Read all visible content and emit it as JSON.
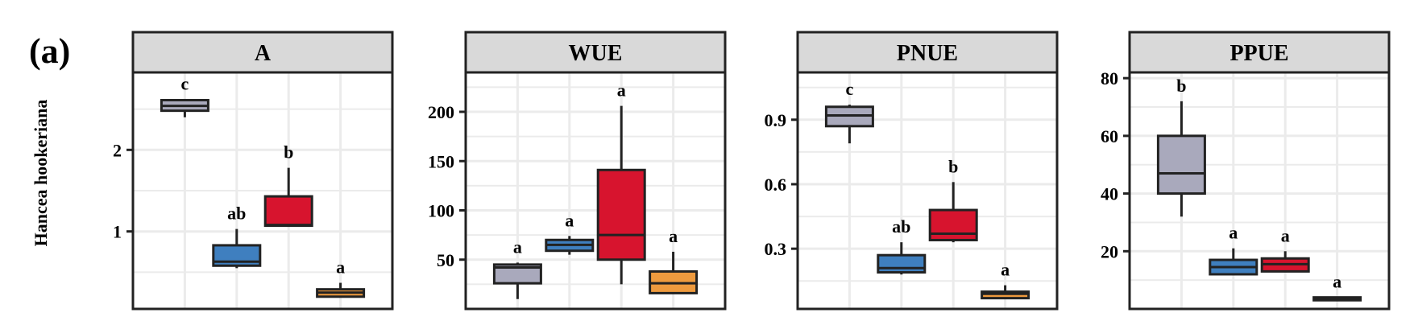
{
  "panel_label": "(a)",
  "row_label": "Hancea hookeriana",
  "colors": {
    "group1": "#a9a9bc",
    "group2": "#3f7fbf",
    "group3": "#d7142e",
    "group4": "#ee9a3e",
    "strip_bg": "#d9d9d9",
    "grid": "#ebebeb",
    "line": "#222222"
  },
  "chart_data": [
    {
      "type": "box",
      "title": "A",
      "ylim": [
        0.05,
        2.95
      ],
      "yticks": [
        1,
        2
      ],
      "ytick_labels": [
        "1",
        "2"
      ],
      "boxes": [
        {
          "q1": 2.48,
          "median": 2.54,
          "q3": 2.61,
          "whisker_low": 2.4,
          "whisker_high": 2.62,
          "letter": "c",
          "color": "group1"
        },
        {
          "q1": 0.58,
          "median": 0.63,
          "q3": 0.83,
          "whisker_low": 0.55,
          "whisker_high": 1.03,
          "letter": "ab",
          "color": "group2"
        },
        {
          "q1": 1.07,
          "median": 1.08,
          "q3": 1.43,
          "whisker_low": 1.07,
          "whisker_high": 1.78,
          "letter": "b",
          "color": "group3"
        },
        {
          "q1": 0.2,
          "median": 0.25,
          "q3": 0.29,
          "whisker_low": 0.2,
          "whisker_high": 0.37,
          "letter": "a",
          "color": "group4"
        }
      ]
    },
    {
      "type": "box",
      "title": "WUE",
      "ylim": [
        0,
        240
      ],
      "yticks": [
        50,
        100,
        150,
        200
      ],
      "ytick_labels": [
        "50",
        "100",
        "150",
        "200"
      ],
      "boxes": [
        {
          "q1": 26,
          "median": 42,
          "q3": 45,
          "whisker_low": 10,
          "whisker_high": 47,
          "letter": "a",
          "color": "group1"
        },
        {
          "q1": 59,
          "median": 65,
          "q3": 70,
          "whisker_low": 55,
          "whisker_high": 74,
          "letter": "a",
          "color": "group2"
        },
        {
          "q1": 50,
          "median": 75,
          "q3": 141,
          "whisker_low": 25,
          "whisker_high": 206,
          "letter": "a",
          "color": "group3"
        },
        {
          "q1": 16,
          "median": 26,
          "q3": 38,
          "whisker_low": 16,
          "whisker_high": 58,
          "letter": "a",
          "color": "group4"
        }
      ]
    },
    {
      "type": "box",
      "title": "PNUE",
      "ylim": [
        0.02,
        1.12
      ],
      "yticks": [
        0.3,
        0.6,
        0.9
      ],
      "ytick_labels": [
        "0.3",
        "0.6",
        "0.9"
      ],
      "boxes": [
        {
          "q1": 0.87,
          "median": 0.92,
          "q3": 0.96,
          "whisker_low": 0.79,
          "whisker_high": 0.97,
          "letter": "c",
          "color": "group1"
        },
        {
          "q1": 0.19,
          "median": 0.21,
          "q3": 0.27,
          "whisker_low": 0.18,
          "whisker_high": 0.33,
          "letter": "ab",
          "color": "group2"
        },
        {
          "q1": 0.34,
          "median": 0.37,
          "q3": 0.48,
          "whisker_low": 0.33,
          "whisker_high": 0.61,
          "letter": "b",
          "color": "group3"
        },
        {
          "q1": 0.07,
          "median": 0.09,
          "q3": 0.1,
          "whisker_low": 0.07,
          "whisker_high": 0.13,
          "letter": "a",
          "color": "group4"
        }
      ]
    },
    {
      "type": "box",
      "title": "PPUE",
      "ylim": [
        0,
        82
      ],
      "yticks": [
        20,
        40,
        60,
        80
      ],
      "ytick_labels": [
        "20",
        "40",
        "60",
        "80"
      ],
      "boxes": [
        {
          "q1": 40,
          "median": 47,
          "q3": 60,
          "whisker_low": 32,
          "whisker_high": 72,
          "letter": "b",
          "color": "group1"
        },
        {
          "q1": 12,
          "median": 14.5,
          "q3": 17,
          "whisker_low": 12,
          "whisker_high": 21,
          "letter": "a",
          "color": "group2"
        },
        {
          "q1": 13,
          "median": 15.5,
          "q3": 17.5,
          "whisker_low": 13,
          "whisker_high": 20,
          "letter": "a",
          "color": "group3"
        },
        {
          "q1": 3,
          "median": 3.5,
          "q3": 4,
          "whisker_low": 3,
          "whisker_high": 4,
          "letter": "a",
          "color": "group4"
        }
      ]
    }
  ]
}
